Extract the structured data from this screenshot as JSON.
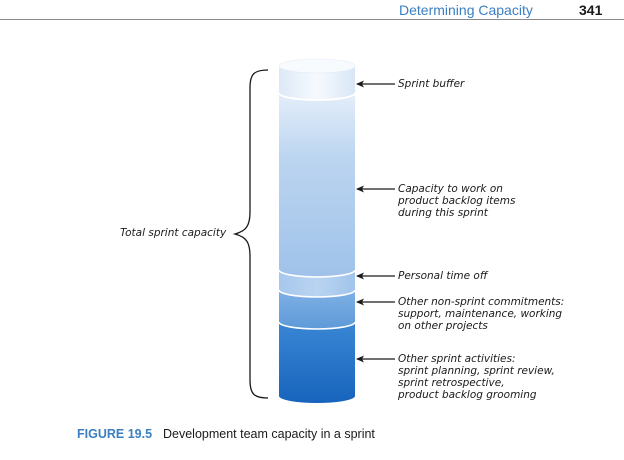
{
  "header": {
    "title": "Determining Capacity",
    "page_number": "341"
  },
  "diagram": {
    "brace_label": "Total sprint capacity",
    "segments": [
      {
        "label": "Sprint buffer"
      },
      {
        "label": "Capacity to work on\nproduct backlog items\nduring this sprint"
      },
      {
        "label": "Personal time off"
      },
      {
        "label": "Other non-sprint commitments:\nsupport, maintenance, working\non other projects"
      },
      {
        "label": "Other sprint activities:\nsprint planning, sprint review,\nsprint retrospective,\nproduct backlog grooming"
      }
    ],
    "colors": {
      "cylinder_light": "#eef5fc",
      "cylinder_mid": "#a9c9ec",
      "cylinder_dark": "#1f72c8",
      "accent": "#3a7fc1"
    }
  },
  "caption": {
    "figure_number": "FIGURE 19.5",
    "text": "Development team capacity in a sprint"
  }
}
